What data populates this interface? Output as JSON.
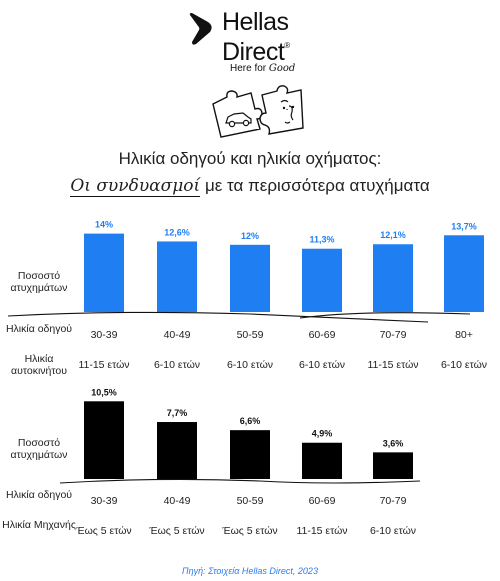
{
  "brand": {
    "name_line1": "Hellas",
    "name_line2": "Direct",
    "registered": "®",
    "tagline_prefix": "Here for",
    "tagline_script": "Good"
  },
  "heading": {
    "title": "Ηλικία οδηγού και ηλικία οχήματος:",
    "subtitle_script": "Οι συνδυασμοί",
    "subtitle_rest": "με τα περισσότερα ατυχήματα"
  },
  "colors": {
    "top_bar": "#1f7ff2",
    "top_label": "#1f7ff2",
    "bottom_bar": "#000000",
    "bottom_label": "#111111",
    "source": "#2b7cf0"
  },
  "icons": [
    "puzzle-car-icon",
    "puzzle-face-icon"
  ],
  "chart_data": [
    {
      "type": "bar",
      "y_label": "Ποσοστό ατυχημάτων",
      "row1_label": "Ηλικία οδηγού",
      "row2_label": "Ηλικία αυτοκινήτου",
      "categories": [
        "30-39",
        "40-49",
        "50-59",
        "60-69",
        "70-79",
        "80+"
      ],
      "vehicle_age": [
        "11-15 ετών",
        "6-10 ετών",
        "6-10 ετών",
        "6-10 ετών",
        "11-15 ετών",
        "6-10 ετών"
      ],
      "values": [
        14,
        12.6,
        12,
        11.3,
        12.1,
        13.7
      ],
      "value_labels": [
        "14%",
        "12,6%",
        "12%",
        "11,3%",
        "12,1%",
        "13,7%"
      ]
    },
    {
      "type": "bar",
      "y_label": "Ποσοστό ατυχημάτων",
      "row1_label": "Ηλικία οδηγού",
      "row2_label": "Ηλικία Μηχανής",
      "categories": [
        "30-39",
        "40-49",
        "50-59",
        "60-69",
        "70-79"
      ],
      "vehicle_age": [
        "Έως 5 ετών",
        "Έως 5 ετών",
        "Έως 5 ετών",
        "11-15 ετών",
        "6-10 ετών"
      ],
      "values": [
        10.5,
        7.7,
        6.6,
        4.9,
        3.6
      ],
      "value_labels": [
        "10,5%",
        "7,7%",
        "6,6%",
        "4,9%",
        "3,6%"
      ]
    }
  ],
  "source": "Πηγή: Στοιχεία Hellas Direct, 2023"
}
